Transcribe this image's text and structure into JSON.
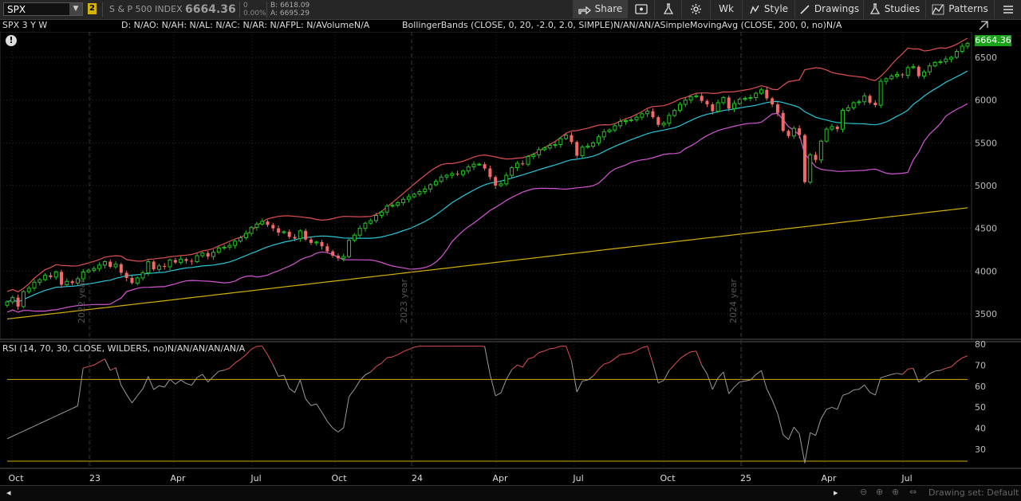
{
  "toolbar": {
    "symbol": "SPX",
    "symbol_count": "2",
    "index_name": "S & P 500 INDEX",
    "last_price": "6664.36",
    "change": "0",
    "change_pct": "0.00%",
    "bid": "B: 6618.09",
    "ask": "A: 6695.29",
    "share_label": "Share",
    "timeframe_label": "Wk",
    "style_label": "Style",
    "drawings_label": "Drawings",
    "studies_label": "Studies",
    "patterns_label": "Patterns",
    "icons": [
      "share-icon",
      "tablet-icon",
      "flask-icon",
      "gear-icon",
      "style-icon",
      "pencil-icon",
      "studies-flask-icon",
      "patterns-icon",
      "menu-icon"
    ]
  },
  "chart_header": {
    "title": "SPX 3 Y W",
    "stats": "D: N/AO: N/AH: N/AL: N/AC: N/AR: N/AFPL: N/AVolumeN/A",
    "studies": "BollingerBands (CLOSE, 0, 20, -2.0, 2.0, SIMPLE)N/AN/AN/ASimpleMovingAvg (CLOSE, 200, 0, no)N/A",
    "price_tag": "6664.36",
    "alert_icon": "info-icon",
    "year_markers": [
      "2022 year",
      "2023 year",
      "2024 year"
    ]
  },
  "rsi_header": "RSI (14, 70, 30, CLOSE, WILDERS, no)N/AN/AN/AN/AN/A",
  "footer": {
    "drawing_set": "Drawing set: Default",
    "icons": [
      "zoom-out-icon",
      "zoom-in-icon",
      "crosshair-icon",
      "zoom-fit-icon"
    ]
  },
  "colors": {
    "background": "#000000",
    "up_candle": "#25c125",
    "down_candle": "#f36969",
    "bb_upper": "#e05050",
    "bb_mid": "#27c7d6",
    "bb_lower": "#d456d4",
    "sma200": "#d4b100",
    "rsi": "#9a9a9a",
    "rsi_overbought": "#e05050",
    "rsi_levels": "#d4b100",
    "price_tag_bg": "#1aa31a"
  },
  "chart_data": [
    {
      "type": "candlestick",
      "title": "SPX 3 Y W",
      "y_ticks": [
        3500,
        4000,
        4500,
        5000,
        5500,
        6000,
        6500
      ],
      "ylim": [
        3300,
        6650
      ],
      "x_labels": [
        "Oct",
        "23",
        "Apr",
        "Jul",
        "Oct",
        "24",
        "Apr",
        "Jul",
        "Oct",
        "25",
        "Apr",
        "Jul"
      ],
      "close": [
        3640,
        3690,
        3585,
        3760,
        3800,
        3870,
        3900,
        3950,
        3930,
        3990,
        3840,
        3880,
        3860,
        3910,
        3990,
        4010,
        4030,
        4070,
        4110,
        4050,
        4080,
        3980,
        3920,
        3860,
        3920,
        3980,
        4110,
        4020,
        4060,
        4050,
        4130,
        4100,
        4140,
        4120,
        4110,
        4180,
        4210,
        4170,
        4220,
        4270,
        4280,
        4300,
        4350,
        4390,
        4440,
        4510,
        4550,
        4580,
        4540,
        4500,
        4450,
        4460,
        4400,
        4380,
        4470,
        4370,
        4330,
        4340,
        4290,
        4230,
        4180,
        4150,
        4170,
        4360,
        4420,
        4500,
        4560,
        4590,
        4650,
        4690,
        4760,
        4770,
        4800,
        4840,
        4870,
        4900,
        4930,
        4960,
        5010,
        5050,
        5100,
        5120,
        5140,
        5130,
        5170,
        5220,
        5250,
        5250,
        5200,
        5100,
        5000,
        5020,
        5120,
        5210,
        5260,
        5250,
        5340,
        5360,
        5420,
        5440,
        5470,
        5480,
        5550,
        5590,
        5510,
        5350,
        5450,
        5460,
        5500,
        5570,
        5630,
        5650,
        5700,
        5750,
        5760,
        5770,
        5800,
        5840,
        5870,
        5800,
        5710,
        5730,
        5820,
        5880,
        5950,
        6000,
        6040,
        6050,
        5990,
        5950,
        5870,
        5970,
        6030,
        5900,
        5960,
        6010,
        6020,
        6030,
        6080,
        6120,
        6020,
        5950,
        5850,
        5640,
        5580,
        5670,
        5590,
        5040,
        5360,
        5300,
        5520,
        5660,
        5690,
        5660,
        5880,
        5910,
        5970,
        5980,
        6050,
        5970,
        5940,
        6220,
        6250,
        6280,
        6300,
        6290,
        6380,
        6390,
        6280,
        6330,
        6400,
        6440,
        6450,
        6480,
        6500,
        6570,
        6630,
        6664
      ]
    },
    {
      "type": "line",
      "title": "RSI (14, 70, 30, CLOSE, WILDERS, no)",
      "y_ticks": [
        30,
        40,
        50,
        60,
        70,
        80
      ],
      "ylim": [
        20,
        80
      ],
      "overbought": 70,
      "oversold": 30
    }
  ]
}
